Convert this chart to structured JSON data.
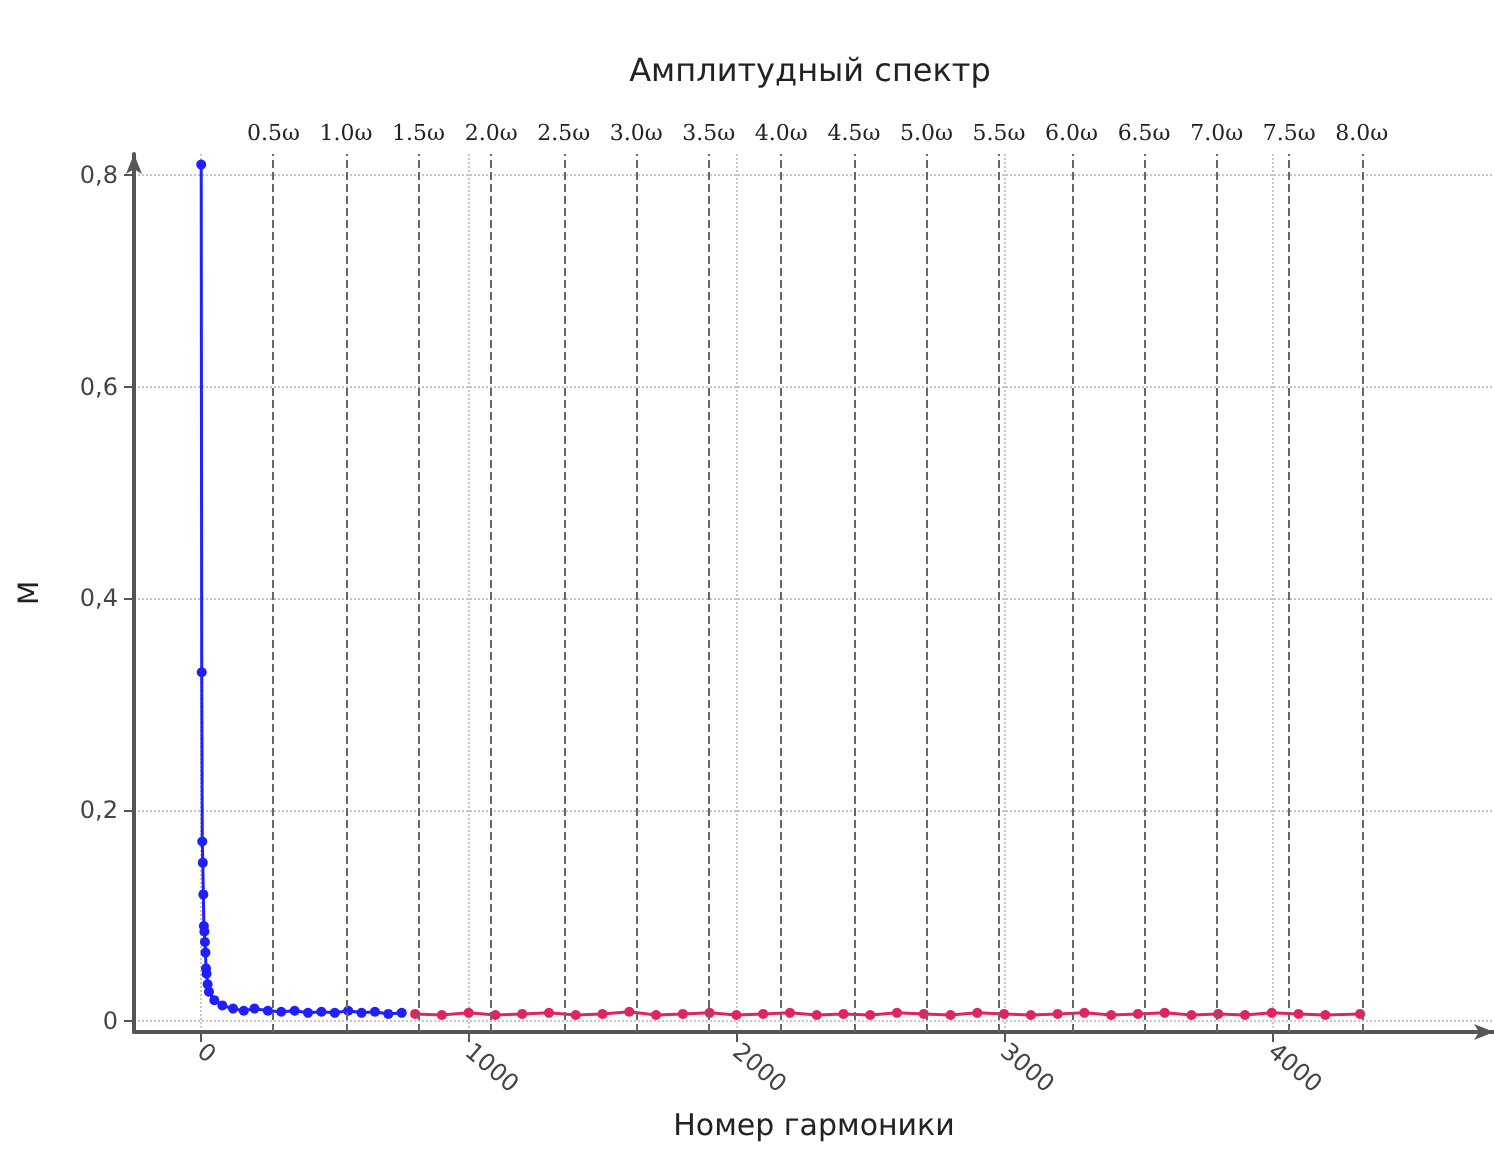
{
  "chart_data": {
    "type": "line",
    "title": "Амплитудный спектр",
    "xlabel": "Номер гармоники",
    "ylabel": "М",
    "xlim": [
      -250,
      4830
    ],
    "ylim": [
      -0.01,
      0.82
    ],
    "xticks": [
      0,
      1000,
      2000,
      3000,
      4000
    ],
    "yticks": [
      0,
      {
        "value": 0.2,
        "label": "0,2"
      },
      {
        "value": 0.4,
        "label": "0,4"
      },
      {
        "value": 0.6,
        "label": "0,6"
      },
      {
        "value": 0.8,
        "label": "0,8"
      }
    ],
    "grid": true,
    "marker": "circle",
    "line_style": "solid",
    "series": [
      {
        "color": "#1f1fff",
        "x": [
          1,
          3,
          5,
          7,
          9,
          11,
          13,
          15,
          17,
          19,
          21,
          25,
          30,
          50,
          80,
          120,
          160,
          200,
          250,
          300,
          350,
          400,
          450,
          500,
          550,
          600,
          650,
          700,
          750
        ],
        "values": [
          0.81,
          0.33,
          0.17,
          0.15,
          0.12,
          0.09,
          0.085,
          0.075,
          0.065,
          0.05,
          0.045,
          0.035,
          0.028,
          0.02,
          0.015,
          0.012,
          0.01,
          0.012,
          0.01,
          0.009,
          0.01,
          0.008,
          0.009,
          0.008,
          0.01,
          0.008,
          0.009,
          0.007,
          0.008
        ]
      },
      {
        "color": "#e0245e",
        "x": [
          800,
          900,
          1000,
          1100,
          1200,
          1300,
          1400,
          1500,
          1600,
          1700,
          1800,
          1900,
          2000,
          2100,
          2200,
          2300,
          2400,
          2500,
          2600,
          2700,
          2800,
          2900,
          3000,
          3100,
          3200,
          3300,
          3400,
          3500,
          3600,
          3700,
          3800,
          3900,
          4000,
          4100,
          4200,
          4330
        ],
        "values": [
          0.007,
          0.006,
          0.008,
          0.006,
          0.007,
          0.008,
          0.006,
          0.007,
          0.009,
          0.006,
          0.007,
          0.008,
          0.006,
          0.007,
          0.008,
          0.006,
          0.007,
          0.006,
          0.008,
          0.007,
          0.006,
          0.008,
          0.007,
          0.006,
          0.007,
          0.008,
          0.006,
          0.007,
          0.008,
          0.006,
          0.007,
          0.006,
          0.008,
          0.007,
          0.006,
          0.007
        ]
      }
    ],
    "ref_lines": [
      {
        "axis": "x",
        "value": 271,
        "label": "0.5ω",
        "line_style": "dashed"
      },
      {
        "axis": "x",
        "value": 542,
        "label": "1.0ω",
        "line_style": "dashed"
      },
      {
        "axis": "x",
        "value": 813,
        "label": "1.5ω",
        "line_style": "dashed"
      },
      {
        "axis": "x",
        "value": 1084,
        "label": "2.0ω",
        "line_style": "dashed"
      },
      {
        "axis": "x",
        "value": 1355,
        "label": "2.5ω",
        "line_style": "dashed"
      },
      {
        "axis": "x",
        "value": 1626,
        "label": "3.0ω",
        "line_style": "dashed"
      },
      {
        "axis": "x",
        "value": 1897,
        "label": "3.5ω",
        "line_style": "dashed"
      },
      {
        "axis": "x",
        "value": 2168,
        "label": "4.0ω",
        "line_style": "dashed"
      },
      {
        "axis": "x",
        "value": 2439,
        "label": "4.5ω",
        "line_style": "dashed"
      },
      {
        "axis": "x",
        "value": 2710,
        "label": "5.0ω",
        "line_style": "dashed"
      },
      {
        "axis": "x",
        "value": 2981,
        "label": "5.5ω",
        "line_style": "dashed"
      },
      {
        "axis": "x",
        "value": 3252,
        "label": "6.0ω",
        "line_style": "dashed"
      },
      {
        "axis": "x",
        "value": 3523,
        "label": "6.5ω",
        "line_style": "dashed"
      },
      {
        "axis": "x",
        "value": 3794,
        "label": "7.0ω",
        "line_style": "dashed"
      },
      {
        "axis": "x",
        "value": 4065,
        "label": "7.5ω",
        "line_style": "dashed"
      },
      {
        "axis": "x",
        "value": 4336,
        "label": "8.0ω",
        "line_style": "dashed"
      }
    ]
  }
}
